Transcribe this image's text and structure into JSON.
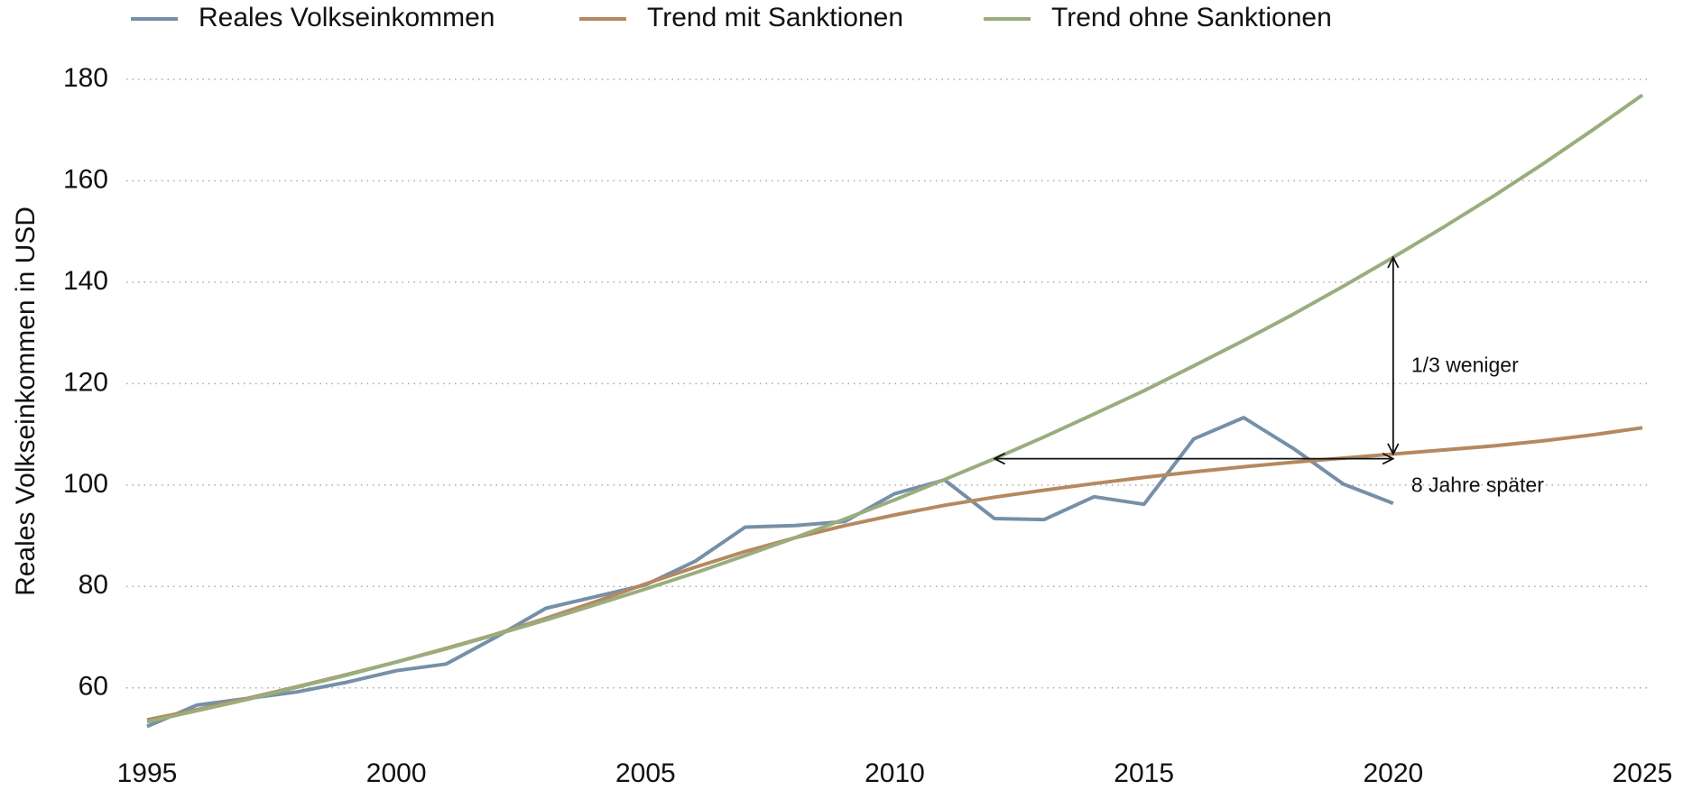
{
  "chart_data": {
    "type": "line",
    "y_label": "Reales Volkseinkommen in USD",
    "x": [
      1995,
      1996,
      1997,
      1998,
      1999,
      2000,
      2001,
      2002,
      2003,
      2004,
      2005,
      2006,
      2007,
      2008,
      2009,
      2010,
      2011,
      2012,
      2013,
      2014,
      2015,
      2016,
      2017,
      2018,
      2019,
      2020,
      2021,
      2022,
      2023,
      2024,
      2025
    ],
    "series": [
      {
        "name": "Reales Volkseinkommen",
        "color": "#7590a8",
        "values": [
          52.4,
          56.6,
          57.9,
          59.2,
          61.1,
          63.4,
          64.7,
          70.0,
          75.7,
          78.0,
          80.3,
          85.0,
          91.7,
          92.0,
          92.8,
          98.3,
          101.0,
          93.4,
          93.2,
          97.7,
          96.2,
          109.1,
          113.3,
          107.2,
          100.2,
          96.4,
          null,
          null,
          null,
          null,
          null
        ]
      },
      {
        "name": "Trend mit Sanktionen",
        "color": "#b5895f",
        "values": [
          53.7,
          55.7,
          57.9,
          60.2,
          62.6,
          65.1,
          67.8,
          70.6,
          73.7,
          77.0,
          80.5,
          83.8,
          86.9,
          89.6,
          92.0,
          94.1,
          96.0,
          97.6,
          99.0,
          100.3,
          101.5,
          102.6,
          103.6,
          104.5,
          105.3,
          106.1,
          106.9,
          107.7,
          108.7,
          109.9,
          111.3
        ]
      },
      {
        "name": "Trend ohne Sanktionen",
        "color": "#9aad7d",
        "values": [
          53.3,
          55.5,
          57.7,
          60.1,
          62.5,
          65.1,
          67.7,
          70.5,
          73.4,
          76.4,
          79.5,
          82.7,
          86.1,
          89.6,
          93.3,
          97.1,
          101.1,
          105.2,
          109.5,
          114.0,
          118.6,
          123.5,
          128.5,
          133.7,
          139.2,
          144.9,
          150.8,
          156.9,
          163.3,
          170.0,
          176.9
        ]
      }
    ],
    "annotations": [
      "1/3 weniger",
      "8 Jahre später"
    ],
    "xlim": [
      1995,
      2025
    ],
    "xticks": [
      1995,
      2000,
      2005,
      2010,
      2015,
      2020,
      2025
    ],
    "ylim": [
      50,
      182
    ],
    "yticks": [
      60,
      80,
      100,
      120,
      140,
      160,
      180
    ],
    "grid": true,
    "legend": "top"
  }
}
